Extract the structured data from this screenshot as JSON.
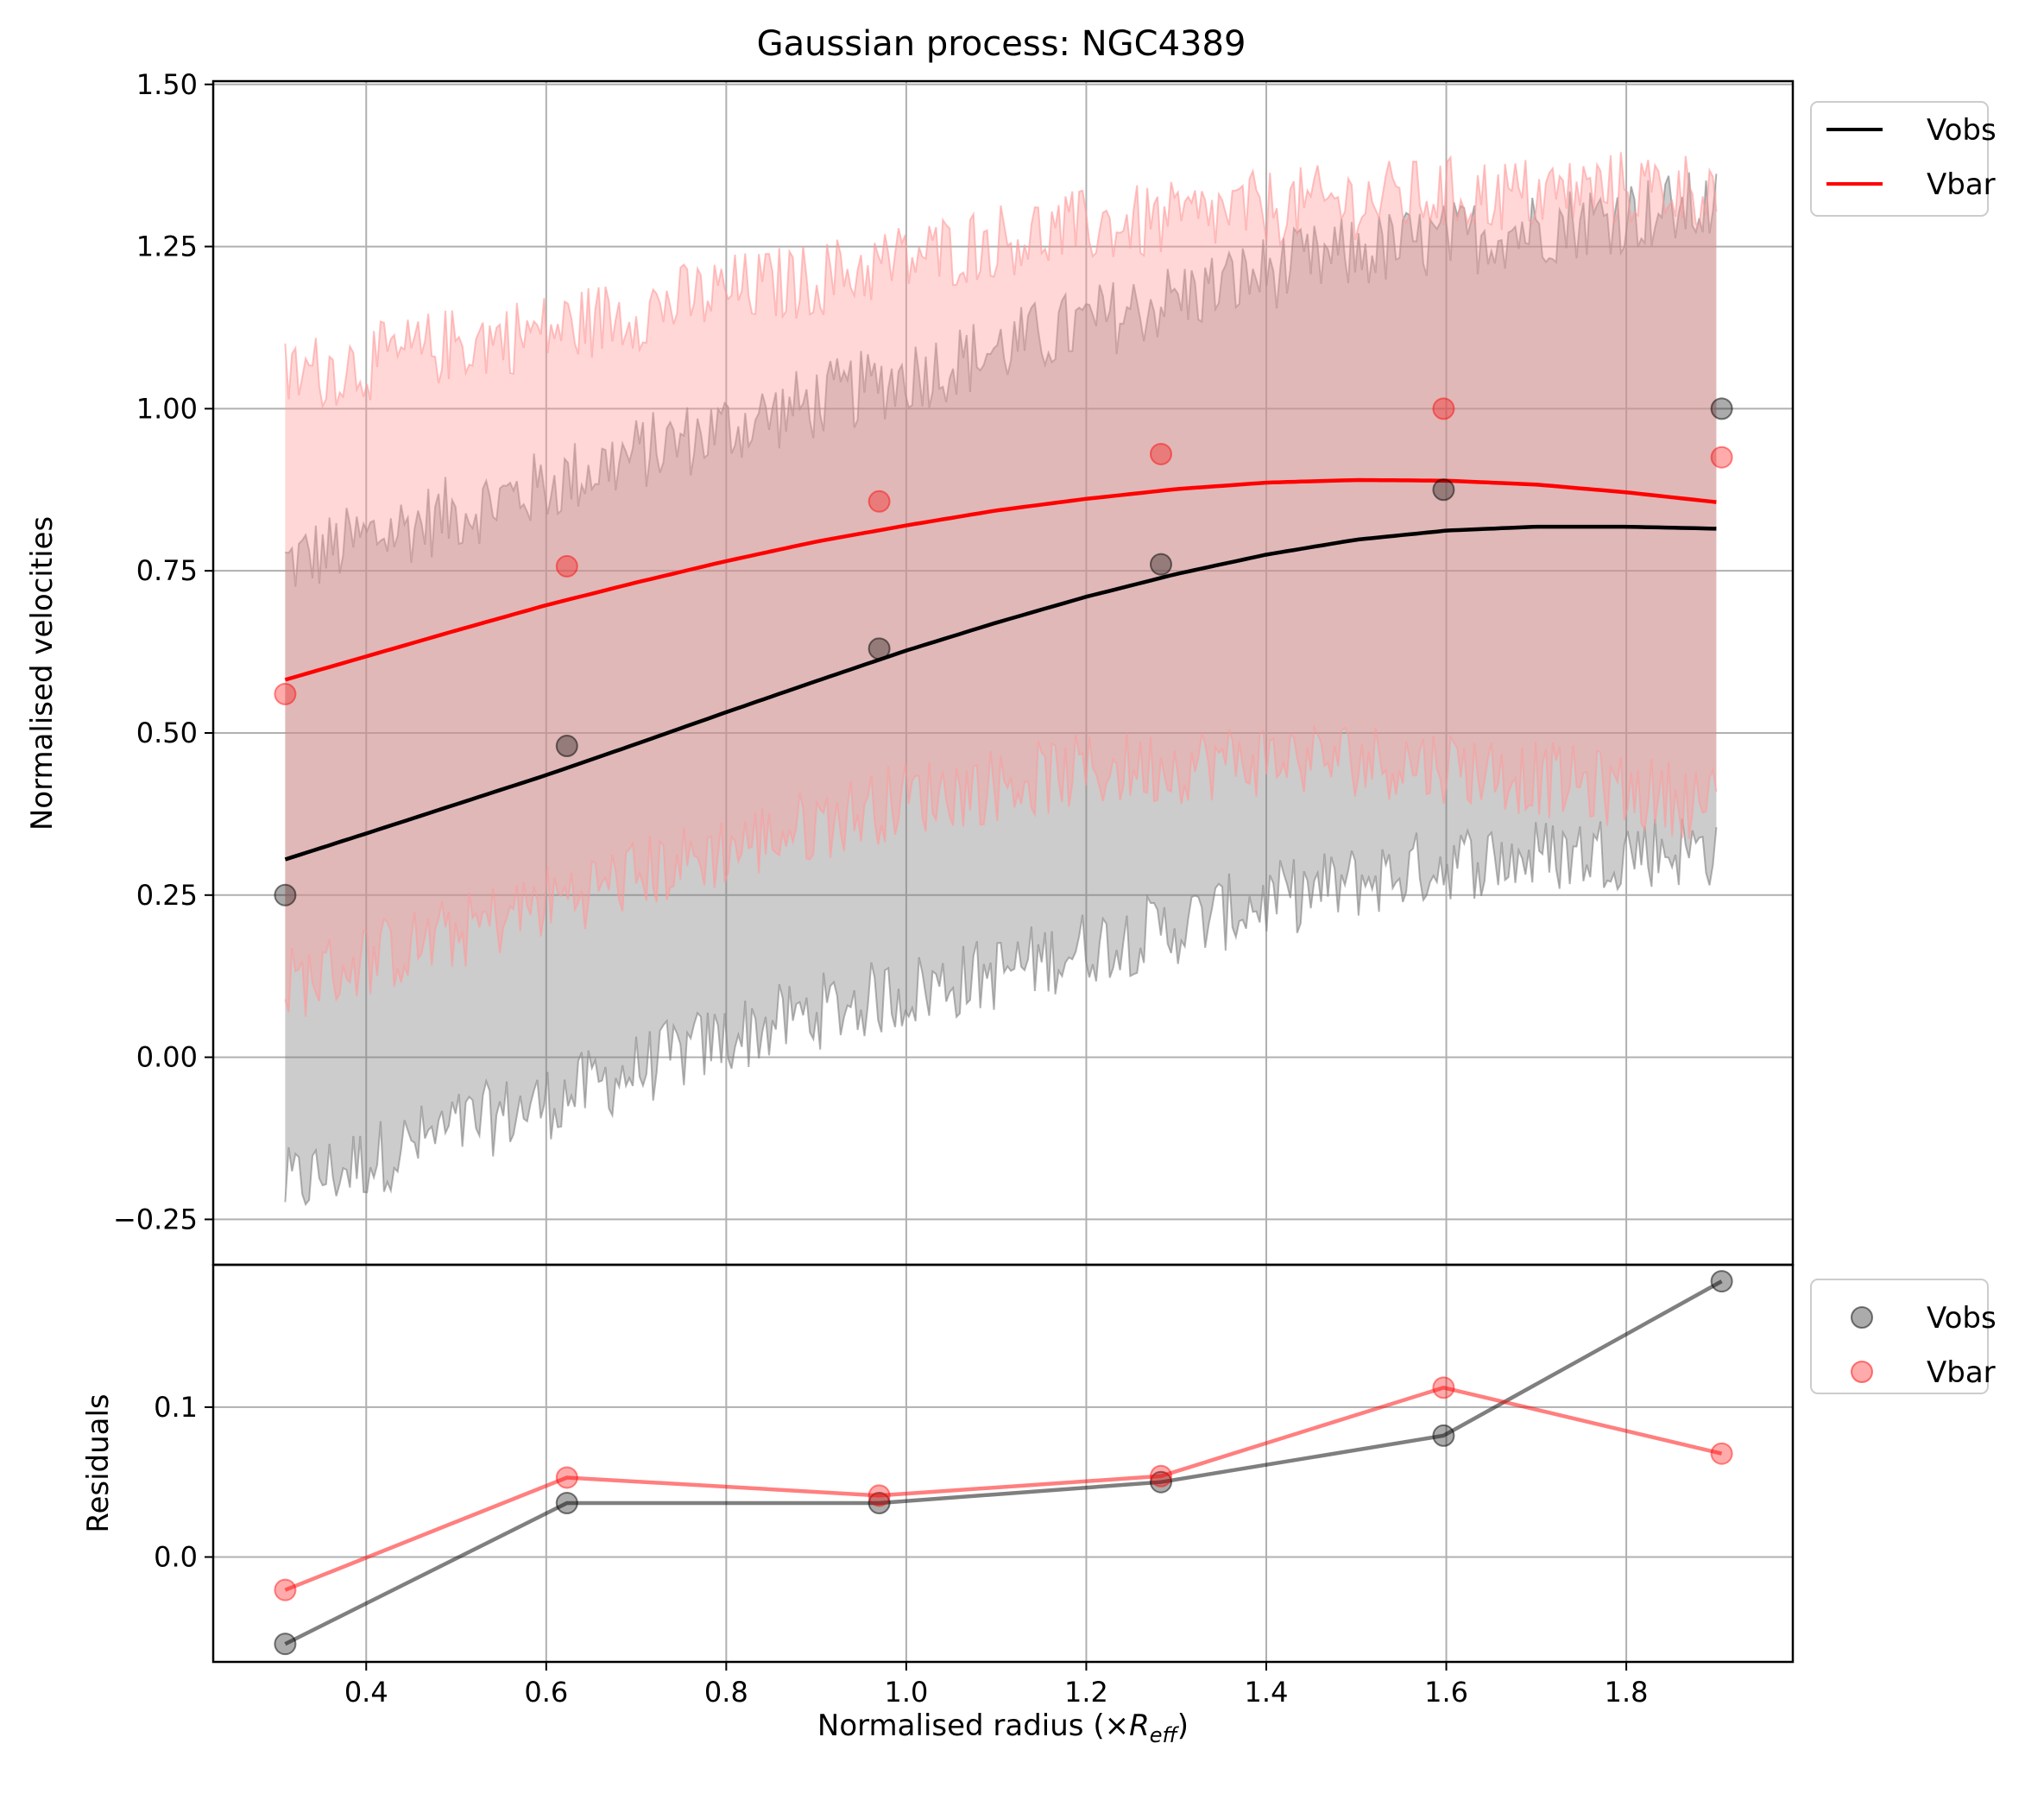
{
  "chart_data": [
    {
      "panel": "main",
      "type": "line",
      "title": "Gaussian process: NGC4389",
      "xlabel_prefix": "Normalised radius (×",
      "xlabel_symbol": "R",
      "xlabel_subscript": "eff",
      "xlabel_suffix": ")",
      "ylabel": "Normalised velocities",
      "xlim": [
        0.23,
        1.985
      ],
      "ylim": [
        -0.32,
        1.505
      ],
      "xticks": [
        0.4,
        0.6,
        0.8,
        1.0,
        1.2,
        1.4,
        1.6,
        1.8
      ],
      "xtick_labels": [
        "0.4",
        "0.6",
        "0.8",
        "1.0",
        "1.2",
        "1.4",
        "1.6",
        "1.8"
      ],
      "yticks": [
        -0.25,
        0.0,
        0.25,
        0.5,
        0.75,
        1.0,
        1.25,
        1.5
      ],
      "ytick_labels": [
        "−0.25",
        "0.00",
        "0.25",
        "0.50",
        "0.75",
        "1.00",
        "1.25",
        "1.50"
      ],
      "grid": true,
      "legend_position": "outside-top-right",
      "series": [
        {
          "name": "Vobs",
          "color": "#000000",
          "band_color": "#808080",
          "x": [
            0.31,
            0.4,
            0.5,
            0.6,
            0.7,
            0.8,
            0.9,
            1.0,
            1.1,
            1.2,
            1.3,
            1.4,
            1.5,
            1.6,
            1.7,
            1.8,
            1.9
          ],
          "mean": [
            0.305,
            0.345,
            0.39,
            0.435,
            0.483,
            0.532,
            0.58,
            0.627,
            0.67,
            0.71,
            0.745,
            0.775,
            0.798,
            0.812,
            0.818,
            0.818,
            0.815
          ],
          "lower": [
            -0.2,
            -0.16,
            -0.11,
            -0.07,
            -0.02,
            0.03,
            0.07,
            0.1,
            0.13,
            0.17,
            0.2,
            0.24,
            0.27,
            0.3,
            0.31,
            0.32,
            0.32
          ],
          "upper": [
            0.76,
            0.8,
            0.84,
            0.88,
            0.93,
            0.97,
            1.01,
            1.05,
            1.09,
            1.13,
            1.17,
            1.21,
            1.24,
            1.26,
            1.28,
            1.3,
            1.31
          ],
          "points_x": [
            0.31,
            0.623,
            0.97,
            1.283,
            1.597,
            1.906
          ],
          "points_y": [
            0.25,
            0.48,
            0.63,
            0.76,
            0.875,
            1.0
          ]
        },
        {
          "name": "Vbar",
          "color": "#ff0000",
          "band_color": "#ff9a9a",
          "x": [
            0.31,
            0.4,
            0.5,
            0.6,
            0.7,
            0.8,
            0.9,
            1.0,
            1.1,
            1.2,
            1.3,
            1.4,
            1.5,
            1.6,
            1.7,
            1.8,
            1.9
          ],
          "mean": [
            0.582,
            0.618,
            0.658,
            0.697,
            0.732,
            0.765,
            0.795,
            0.82,
            0.843,
            0.861,
            0.876,
            0.886,
            0.89,
            0.889,
            0.883,
            0.871,
            0.856
          ],
          "lower": [
            0.11,
            0.15,
            0.19,
            0.24,
            0.28,
            0.32,
            0.36,
            0.4,
            0.42,
            0.44,
            0.45,
            0.46,
            0.46,
            0.45,
            0.43,
            0.41,
            0.39
          ],
          "upper": [
            1.05,
            1.07,
            1.1,
            1.12,
            1.15,
            1.18,
            1.2,
            1.23,
            1.26,
            1.28,
            1.29,
            1.31,
            1.32,
            1.33,
            1.33,
            1.34,
            1.34
          ],
          "points_x": [
            0.31,
            0.623,
            0.97,
            1.283,
            1.597,
            1.906
          ],
          "points_y": [
            0.56,
            0.757,
            0.857,
            0.93,
            1.0,
            0.925
          ]
        }
      ]
    },
    {
      "panel": "residuals",
      "type": "line",
      "ylabel": "Residuals",
      "ylim": [
        -0.07,
        0.195
      ],
      "yticks": [
        0.0,
        0.1
      ],
      "ytick_labels": [
        "0.0",
        "0.1"
      ],
      "grid": true,
      "legend_position": "outside-top-right",
      "series": [
        {
          "name": "Vobs",
          "color": "#000000",
          "x": [
            0.31,
            0.623,
            0.97,
            1.283,
            1.597,
            1.906
          ],
          "y": [
            -0.058,
            0.036,
            0.036,
            0.05,
            0.081,
            0.184
          ]
        },
        {
          "name": "Vbar",
          "color": "#ff0000",
          "x": [
            0.31,
            0.623,
            0.97,
            1.283,
            1.597,
            1.906
          ],
          "y": [
            -0.022,
            0.053,
            0.041,
            0.054,
            0.113,
            0.069
          ]
        }
      ]
    }
  ]
}
